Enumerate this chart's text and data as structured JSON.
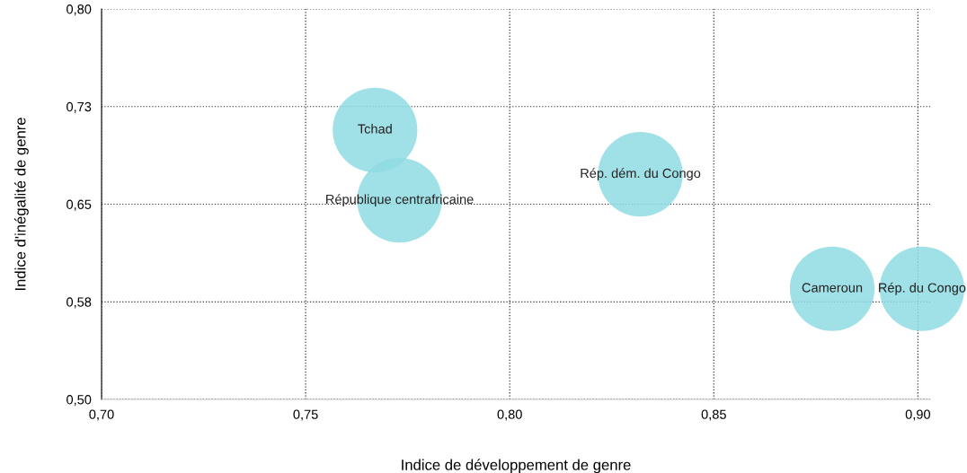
{
  "chart_data": {
    "type": "bubble",
    "xlabel": "Indice de développement de genre",
    "ylabel": "Indice d'inégalité de genre",
    "xlim": [
      0.7,
      0.903
    ],
    "ylim": [
      0.5,
      0.8
    ],
    "xticks": [
      {
        "value": 0.7,
        "label": "0,70"
      },
      {
        "value": 0.75,
        "label": "0,75"
      },
      {
        "value": 0.8,
        "label": "0,80"
      },
      {
        "value": 0.85,
        "label": "0,85"
      },
      {
        "value": 0.9,
        "label": "0,90"
      }
    ],
    "yticks": [
      {
        "value": 0.5,
        "label": "0,50"
      },
      {
        "value": 0.575,
        "label": "0,58"
      },
      {
        "value": 0.65,
        "label": "0,65"
      },
      {
        "value": 0.725,
        "label": "0,73"
      },
      {
        "value": 0.8,
        "label": "0,80"
      }
    ],
    "grid": true,
    "legend": false,
    "series": [
      {
        "name": "Tchad",
        "color": "#8fdbe3",
        "x": [
          0.767
        ],
        "values": [
          0.707
        ],
        "sizes": [
          1
        ]
      },
      {
        "name": "République centrafricaine",
        "color": "#8fdbe3",
        "x": [
          0.773
        ],
        "values": [
          0.653
        ],
        "sizes": [
          1
        ]
      },
      {
        "name": "Rép. dém. du Congo",
        "color": "#8fdbe3",
        "x": [
          0.832
        ],
        "values": [
          0.673
        ],
        "sizes": [
          1
        ]
      },
      {
        "name": "Cameroun",
        "color": "#8fdbe3",
        "x": [
          0.879
        ],
        "values": [
          0.585
        ],
        "sizes": [
          1
        ]
      },
      {
        "name": "Rép. du Congo",
        "color": "#8fdbe3",
        "x": [
          0.901
        ],
        "values": [
          0.585
        ],
        "sizes": [
          1
        ]
      }
    ]
  }
}
